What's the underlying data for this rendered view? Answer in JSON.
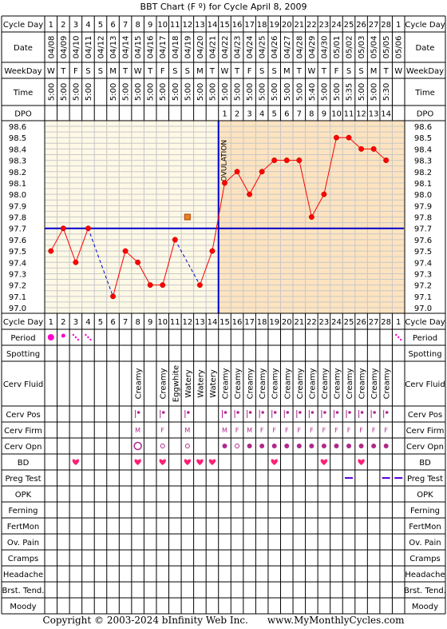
{
  "title": "BBT Chart (F º) for Cycle April 8, 2009",
  "footer": {
    "copyright": "Copyright © 2003-2024 bInfinity Web Inc.",
    "site": "www.MyMonthlyCycles.com"
  },
  "labels": {
    "cycle_day": "Cycle Day",
    "date": "Date",
    "weekday": "WeekDay",
    "time": "Time",
    "dpo": "DPO",
    "ovulation": "OVULATION"
  },
  "colors": {
    "pre_bg": "#fdf9e6",
    "post_bg": "#fde3bf",
    "grid": "#c8c8c8",
    "line": "#ff0000",
    "coverline": "#0000cc",
    "ovulation_line": "#0000cc",
    "period": "#ff00cc",
    "heart": "#ff1f77",
    "mark": "#b0288c",
    "opk_test": "#5a00d8"
  },
  "header": {
    "cycle_days": [
      "1",
      "2",
      "3",
      "4",
      "5",
      "6",
      "7",
      "8",
      "9",
      "10",
      "11",
      "12",
      "13",
      "14",
      "15",
      "16",
      "17",
      "18",
      "19",
      "20",
      "21",
      "22",
      "23",
      "24",
      "25",
      "26",
      "27",
      "28",
      "1"
    ],
    "dates": [
      "04/08",
      "04/09",
      "04/10",
      "04/11",
      "04/12",
      "04/13",
      "04/14",
      "04/15",
      "04/16",
      "04/17",
      "04/18",
      "04/19",
      "04/20",
      "04/21",
      "04/22",
      "04/23",
      "04/24",
      "04/25",
      "04/26",
      "04/27",
      "04/28",
      "04/29",
      "04/30",
      "05/01",
      "05/02",
      "05/03",
      "05/04",
      "05/05",
      "05/06"
    ],
    "weekdays": [
      "W",
      "T",
      "F",
      "S",
      "S",
      "M",
      "T",
      "W",
      "T",
      "F",
      "S",
      "S",
      "M",
      "T",
      "W",
      "T",
      "F",
      "S",
      "S",
      "M",
      "T",
      "W",
      "T",
      "F",
      "S",
      "S",
      "M",
      "T",
      "W"
    ],
    "times": [
      "5:00",
      "5:00",
      "5:00",
      "5:00",
      "",
      "5:00",
      "5:00",
      "5:00",
      "5:00",
      "5:00",
      "5:00",
      "5:00",
      "5:00",
      "5:00",
      "5:00",
      "5:00",
      "5:00",
      "5:00",
      "5:00",
      "5:00",
      "5:00",
      "5:40",
      "5:00",
      "5:00",
      "5:35",
      "5:00",
      "5:00",
      "5:30",
      ""
    ],
    "dpo": [
      "",
      "",
      "",
      "",
      "",
      "",
      "",
      "",
      "",
      "",
      "",
      "",
      "",
      "",
      "1",
      "2",
      "3",
      "4",
      "5",
      "6",
      "7",
      "8",
      "9",
      "10",
      "11",
      "12",
      "13",
      "14",
      ""
    ]
  },
  "chart_data": {
    "type": "line",
    "title": "BBT Chart (F º) for Cycle April 8, 2009",
    "xlabel": "Cycle Day",
    "ylabel": "",
    "x": [
      1,
      2,
      3,
      4,
      5,
      6,
      7,
      8,
      9,
      10,
      11,
      12,
      13,
      14,
      15,
      16,
      17,
      18,
      19,
      20,
      21,
      22,
      23,
      24,
      25,
      26,
      27,
      28,
      29
    ],
    "ylim": [
      97.0,
      98.6
    ],
    "y_ticks": [
      "98.6",
      "98.5",
      "98.4",
      "98.3",
      "98.2",
      "98.1",
      "98.0",
      "97.9",
      "97.8",
      "97.7",
      "97.6",
      "97.5",
      "97.4",
      "97.3",
      "97.2",
      "97.1",
      "97.0"
    ],
    "series": [
      {
        "values": [
          97.5,
          97.7,
          97.4,
          97.7,
          null,
          97.1,
          97.5,
          97.4,
          97.2,
          97.2,
          97.6,
          null,
          97.2,
          97.5,
          98.1,
          98.2,
          98.0,
          98.2,
          98.3,
          98.3,
          98.3,
          97.8,
          98.0,
          98.5,
          98.5,
          98.4,
          98.4,
          98.3,
          null
        ]
      }
    ],
    "dashed_gaps": [
      [
        4,
        6
      ],
      [
        11,
        13
      ]
    ],
    "coverline": 97.7,
    "ovulation_day": 14,
    "open_marker": {
      "day": 12,
      "value": 97.8
    },
    "grid": true
  },
  "fertility": {
    "period_label": "Period",
    "period": [
      "heavy",
      "medium",
      "light",
      "light",
      "",
      "",
      "",
      "",
      "",
      "",
      "",
      "",
      "",
      "",
      "",
      "",
      "",
      "",
      "",
      "",
      "",
      "",
      "",
      "",
      "",
      "",
      "",
      "",
      "light"
    ],
    "spotting_label": "Spotting",
    "cerv_fluid_label": "Cerv Fluid",
    "cerv_fluid": [
      "",
      "",
      "",
      "",
      "",
      "",
      "",
      "Creamy",
      "",
      "Creamy",
      "Eggwhite",
      "Watery",
      "Watery",
      "Watery",
      "Creamy",
      "Creamy",
      "Creamy",
      "Creamy",
      "Creamy",
      "Creamy",
      "Creamy",
      "Creamy",
      "Creamy",
      "Creamy",
      "Creamy",
      "Creamy",
      "Creamy",
      "Creamy",
      ""
    ],
    "cerv_pos_label": "Cerv Pos",
    "cerv_pos": [
      "",
      "",
      "",
      "",
      "",
      "",
      "",
      "|•",
      "",
      "|•",
      "",
      "|•",
      "",
      "",
      "|•",
      "|•",
      "|•",
      "|•",
      "|•",
      "|•",
      "|•",
      "|•",
      "|•",
      "|•",
      "|•",
      "|•",
      "|•",
      "|•",
      ""
    ],
    "cerv_firm_label": "Cerv Firm",
    "cerv_firm": [
      "",
      "",
      "",
      "",
      "",
      "",
      "",
      "M",
      "",
      "F",
      "",
      "M",
      "",
      "",
      "M",
      "F",
      "M",
      "F",
      "F",
      "F",
      "F",
      "F",
      "F",
      "F",
      "F",
      "F",
      "F",
      "F",
      ""
    ],
    "cerv_opn_label": "Cerv Opn",
    "cerv_opn": [
      "",
      "",
      "",
      "",
      "",
      "",
      "",
      "large-open",
      "",
      "small-open",
      "",
      "small-open",
      "",
      "",
      "dot",
      "small-open",
      "dot",
      "dot",
      "dot",
      "dot",
      "dot",
      "dot",
      "dot",
      "dot",
      "dot",
      "dot",
      "dot",
      "dot",
      ""
    ],
    "bd_label": "BD",
    "bd": [
      "",
      "",
      "heart",
      "",
      "",
      "",
      "",
      "heart",
      "",
      "heart",
      "",
      "heart",
      "heart",
      "heart",
      "",
      "",
      "",
      "",
      "heart",
      "",
      "",
      "",
      "heart",
      "",
      "",
      "heart",
      "",
      "",
      ""
    ],
    "preg_test_label": "Preg Test",
    "preg_test": [
      "",
      "",
      "",
      "",
      "",
      "",
      "",
      "",
      "",
      "",
      "",
      "",
      "",
      "",
      "",
      "",
      "",
      "",
      "",
      "",
      "",
      "",
      "",
      "",
      "neg",
      "",
      "",
      "neg",
      "neg"
    ],
    "opk_label": "OPK",
    "ferning_label": "Ferning",
    "fertmon_label": "FertMon",
    "ovpain_label": "Ov. Pain",
    "cramps_label": "Cramps",
    "headache_label": "Headache",
    "brst_label": "Brst. Tend.",
    "moody_label": "Moody"
  }
}
